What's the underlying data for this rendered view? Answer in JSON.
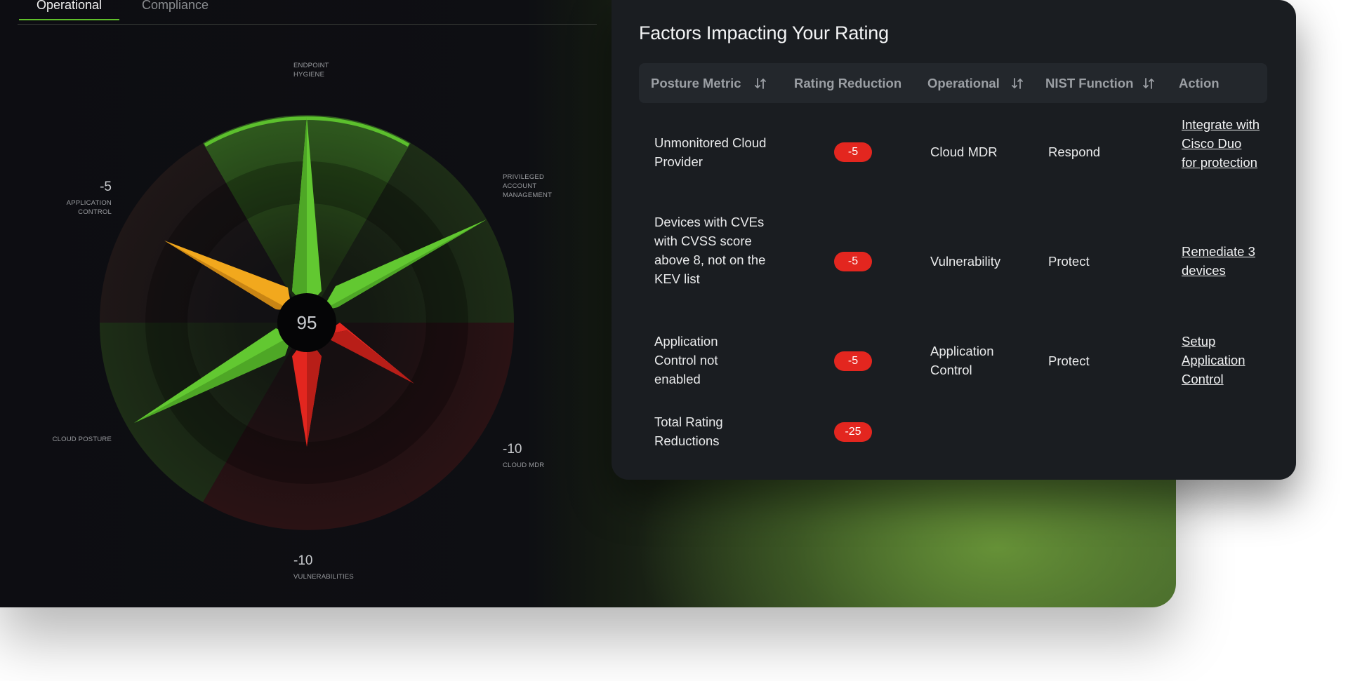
{
  "tabs": [
    {
      "label": "Operational",
      "active": true
    },
    {
      "label": "Compliance",
      "active": false
    }
  ],
  "radar": {
    "score": "95",
    "segments": [
      {
        "key": "endpoint",
        "label_lines": [
          "ENDPOINT",
          "HYGIENE"
        ],
        "value": "",
        "status": "good",
        "color": "#5cc02d"
      },
      {
        "key": "privileged",
        "label_lines": [
          "PRIVILEGED",
          "ACCOUNT",
          "MANAGEMENT"
        ],
        "value": "",
        "status": "good",
        "color": "#5cc02d"
      },
      {
        "key": "cloud_mdr",
        "label_lines": [
          "CLOUD MDR"
        ],
        "value": "-10",
        "status": "bad",
        "color": "#e3261f"
      },
      {
        "key": "vulnerabilities",
        "label_lines": [
          "VULNERABILITIES"
        ],
        "value": "-10",
        "status": "bad",
        "color": "#e3261f"
      },
      {
        "key": "cloud_posture",
        "label_lines": [
          "CLOUD POSTURE"
        ],
        "value": "",
        "status": "good",
        "color": "#5cc02d"
      },
      {
        "key": "application",
        "label_lines": [
          "APPLICATION",
          "CONTROL"
        ],
        "value": "-5",
        "status": "warn",
        "color": "#f2a81d"
      }
    ]
  },
  "card": {
    "title": "Factors Impacting Your Rating",
    "columns": [
      {
        "label": "Posture Metric",
        "sortable": true
      },
      {
        "label": "Rating Reduction",
        "sortable": false
      },
      {
        "label": "Operational",
        "sortable": true
      },
      {
        "label": "NIST Function",
        "sortable": true
      },
      {
        "label": "Action",
        "sortable": false
      }
    ],
    "rows": [
      {
        "metric": "Unmonitored Cloud Provider",
        "reduction": "-5",
        "operational": "Cloud MDR",
        "nist": "Respond",
        "action": "Integrate with Cisco Duo for protection"
      },
      {
        "metric": "Devices with CVEs with CVSS score above 8, not on the KEV list",
        "reduction": "-5",
        "operational": "Vulnerability",
        "nist": "Protect",
        "action": "Remediate 3 devices"
      },
      {
        "metric": "Application Control not enabled",
        "reduction": "-5",
        "operational": "Application Control",
        "nist": "Protect",
        "action": "Setup Application Control"
      }
    ],
    "total": {
      "label": "Total Rating Reductions",
      "value": "-25"
    }
  },
  "colors": {
    "good": "#5cc02d",
    "warn": "#f2a81d",
    "bad": "#e3261f",
    "accent": "#5fbf2a"
  }
}
